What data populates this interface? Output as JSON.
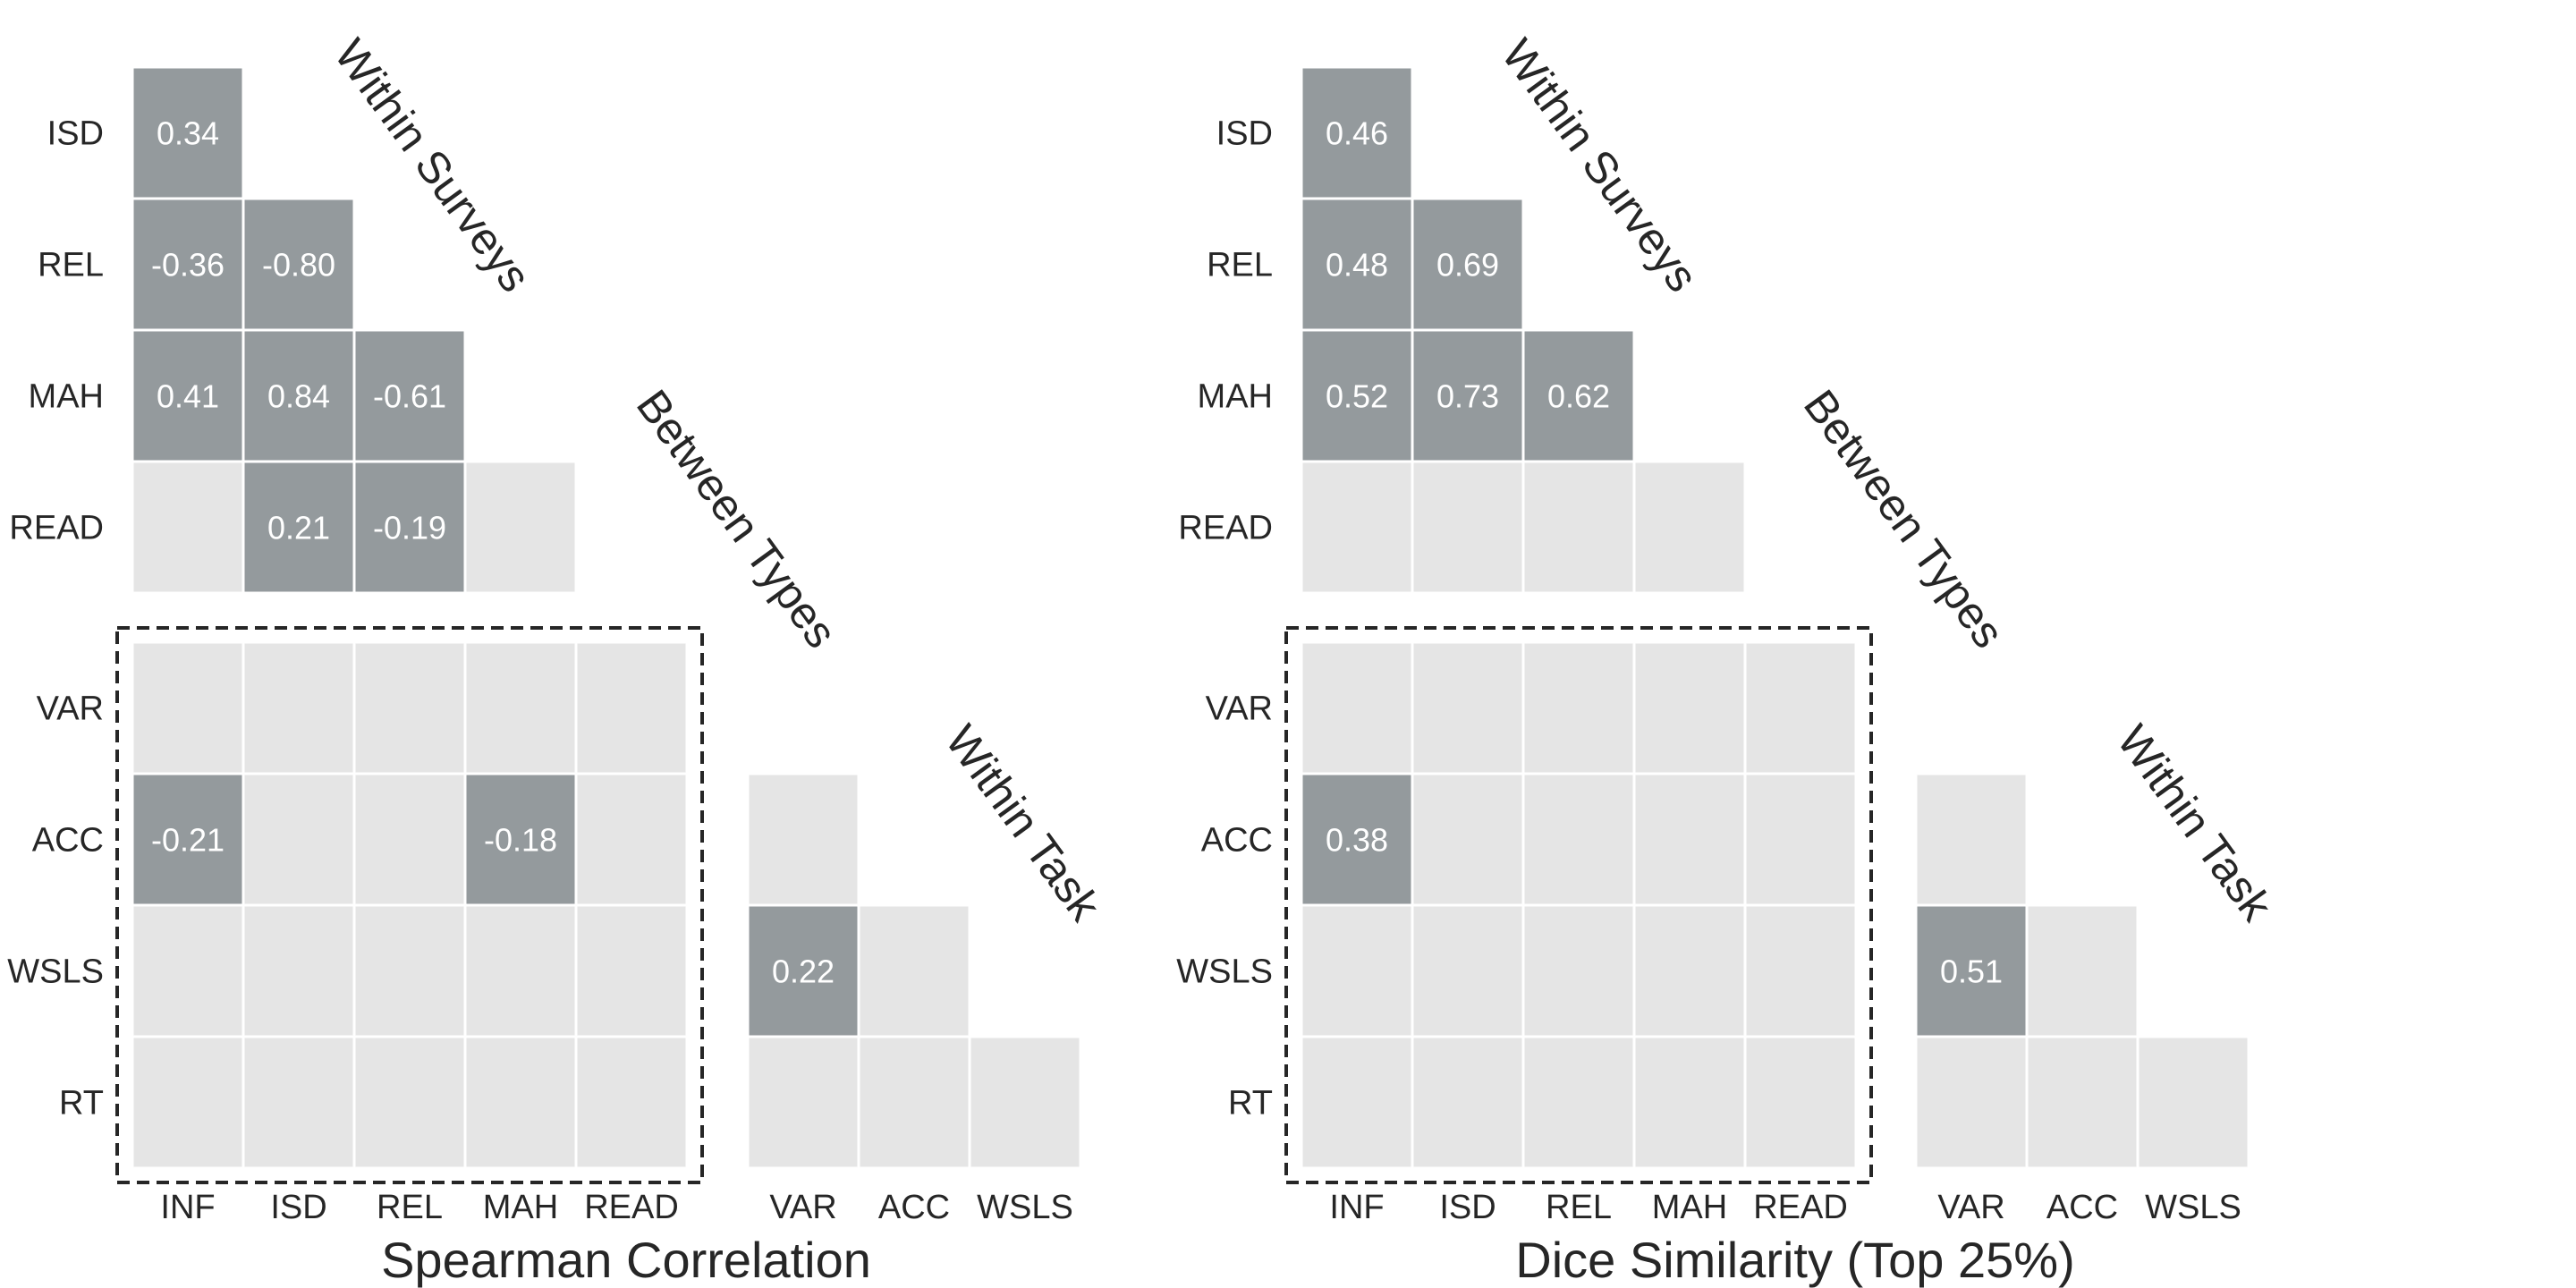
{
  "colors": {
    "significant": "#949a9d",
    "nonsignificant": "#e5e5e5",
    "grid": "#ffffff",
    "text": "#262626",
    "box": "#262626"
  },
  "chart_data": [
    {
      "type": "heatmap",
      "title": "Spearman Correlation",
      "band_labels": {
        "within_surveys": "Within Surveys",
        "between_types": "Between Types",
        "within_task": "Within Task"
      },
      "survey_rows": [
        "ISD",
        "REL",
        "MAH",
        "READ"
      ],
      "survey_cols": [
        "INF",
        "ISD",
        "REL",
        "MAH",
        "READ"
      ],
      "task_rows": [
        "VAR",
        "ACC",
        "WSLS",
        "RT"
      ],
      "task_cols": [
        "VAR",
        "ACC",
        "WSLS"
      ],
      "within_surveys": [
        [
          "0.34",
          null,
          null,
          null
        ],
        [
          "-0.36",
          "-0.80",
          null,
          null
        ],
        [
          "0.41",
          "0.84",
          "-0.61",
          null
        ],
        [
          null,
          "0.21",
          "-0.19",
          null
        ]
      ],
      "between_types": [
        [
          null,
          null,
          null,
          null,
          null
        ],
        [
          "-0.21",
          null,
          null,
          "-0.18",
          null
        ],
        [
          null,
          null,
          null,
          null,
          null
        ],
        [
          null,
          null,
          null,
          null,
          null
        ]
      ],
      "within_task": [
        [
          null,
          null,
          null
        ],
        [
          "0.22",
          null,
          null
        ],
        [
          null,
          null,
          null
        ]
      ]
    },
    {
      "type": "heatmap",
      "title": "Dice Similarity (Top 25%)",
      "band_labels": {
        "within_surveys": "Within Surveys",
        "between_types": "Between Types",
        "within_task": "Within Task"
      },
      "survey_rows": [
        "ISD",
        "REL",
        "MAH",
        "READ"
      ],
      "survey_cols": [
        "INF",
        "ISD",
        "REL",
        "MAH",
        "READ"
      ],
      "task_rows": [
        "VAR",
        "ACC",
        "WSLS",
        "RT"
      ],
      "task_cols": [
        "VAR",
        "ACC",
        "WSLS"
      ],
      "within_surveys": [
        [
          "0.46",
          null,
          null,
          null
        ],
        [
          "0.48",
          "0.69",
          null,
          null
        ],
        [
          "0.52",
          "0.73",
          "0.62",
          null
        ],
        [
          null,
          null,
          null,
          null
        ]
      ],
      "between_types": [
        [
          null,
          null,
          null,
          null,
          null
        ],
        [
          "0.38",
          null,
          null,
          null,
          null
        ],
        [
          null,
          null,
          null,
          null,
          null
        ],
        [
          null,
          null,
          null,
          null,
          null
        ]
      ],
      "within_task": [
        [
          null,
          null,
          null
        ],
        [
          "0.51",
          null,
          null
        ],
        [
          null,
          null,
          null
        ]
      ]
    }
  ]
}
